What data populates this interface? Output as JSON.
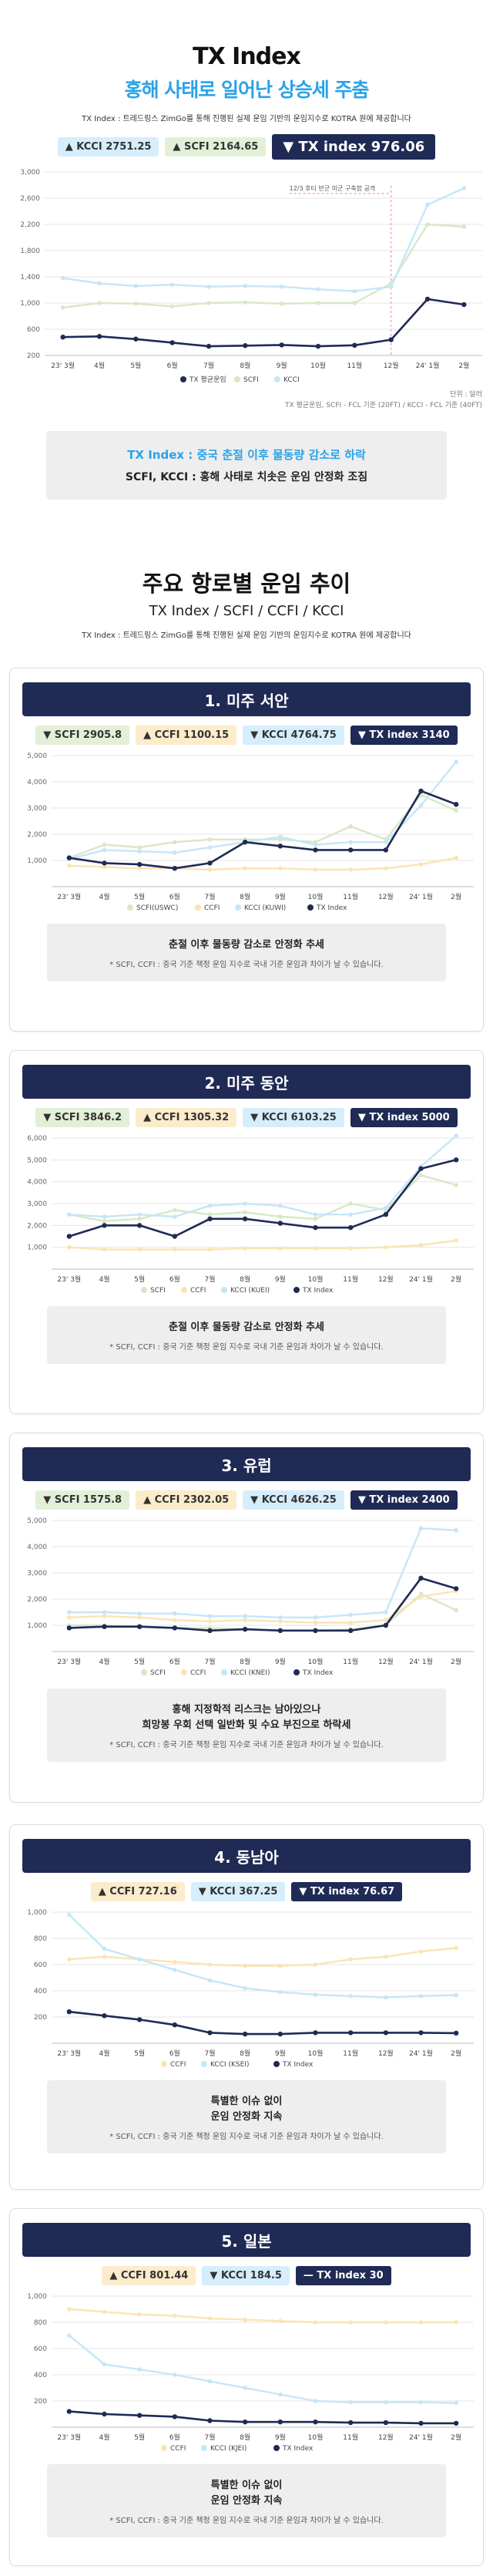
{
  "header": {
    "title": "TX Index",
    "subtitle": "홍해 사태로 일어난 상승세 주춤",
    "description": "TX Index : 트레드링스 ZimGo를 통해 진행된 실제 운임 기반의 운임지수로 KOTRA 원에 제공합니다"
  },
  "top_badges": {
    "kcci": "KCCI 2751.25",
    "scfi": "SCFI 2164.65",
    "tx": "TX index 976.06"
  },
  "top_note": {
    "unit": "단위 : 달러",
    "source": "TX 평균운임, SCFI - FCL 기준 (20FT) / KCCI - FCL 기준 (40FT)"
  },
  "summary_box": {
    "line1": "TX Index : 중국 춘절 이후 물동량 감소로 하락",
    "line2": "SCFI, KCCI : 홍해 사태로 치솟은 운임 안정화 조짐"
  },
  "section": {
    "title": "주요 항로별 운임 추이",
    "subtitle": "TX Index / SCFI / CCFI / KCCI",
    "description": "TX Index : 트레드링스 ZimGo를 통해 진행된 실제 운임 기반의 운임지수로 KOTRA 원에 제공합니다"
  },
  "colors": {
    "tx": "#1f2a55",
    "scfi": "#d7e8c6",
    "ccfi": "#fbe4b3",
    "kcci": "#c6e6f8",
    "accent": "#2aa3e8",
    "annotation": "#e88aa0"
  },
  "months": [
    "23' 3월",
    "4월",
    "5월",
    "6월",
    "7월",
    "8월",
    "9월",
    "10월",
    "11월",
    "12월",
    "24' 1월",
    "2월"
  ],
  "cards": [
    {
      "title": "1. 미주 서안",
      "badges": [
        {
          "key": "scfi",
          "text": "SCFI 2905.8"
        },
        {
          "key": "ccfi",
          "text": "CCFI 1100.15"
        },
        {
          "key": "kcci",
          "text": "KCCI 4764.75"
        },
        {
          "key": "tx",
          "text": "TX index 3140"
        }
      ],
      "note_lines": [
        "춘절 이후 물동량 감소로 안정화 추세"
      ],
      "footnote": "* SCFI, CCFI : 중국 기준 책정 운임 지수로 국내 기준 운임과 차이가 날 수 있습니다."
    },
    {
      "title": "2. 미주 동안",
      "badges": [
        {
          "key": "scfi",
          "text": "SCFI 3846.2"
        },
        {
          "key": "ccfi",
          "text": "CCFI 1305.32"
        },
        {
          "key": "kcci",
          "text": "KCCI 6103.25"
        },
        {
          "key": "tx",
          "text": "TX index 5000"
        }
      ],
      "note_lines": [
        "춘절 이후 물동량 감소로 안정화 추세"
      ],
      "footnote": "* SCFI, CCFI : 중국 기준 책정 운임 지수로 국내 기준 운임과 차이가 날 수 있습니다."
    },
    {
      "title": "3. 유럽",
      "badges": [
        {
          "key": "scfi",
          "text": "SCFI 1575.8"
        },
        {
          "key": "ccfi",
          "text": "CCFI 2302.05"
        },
        {
          "key": "kcci",
          "text": "KCCI 4626.25"
        },
        {
          "key": "tx",
          "text": "TX index 2400"
        }
      ],
      "note_lines": [
        "홍해 지정학적 리스크는 남아있으나",
        "희망봉 우회 선택 일반화 및 수요 부진으로 하락세"
      ],
      "footnote": "* SCFI, CCFI : 중국 기준 책정 운임 지수로 국내 기준 운임과 차이가 날 수 있습니다."
    },
    {
      "title": "4. 동남아",
      "badges": [
        {
          "key": "ccfi",
          "text": "CCFI 727.16"
        },
        {
          "key": "kcci",
          "text": "KCCI 367.25"
        },
        {
          "key": "tx",
          "text": "TX index 76.67"
        }
      ],
      "note_lines": [
        "특별한 이슈 없이",
        "운임 안정화 지속"
      ],
      "footnote": "* SCFI, CCFI : 중국 기준 책정 운임 지수로 국내 기준 운임과 차이가 날 수 있습니다."
    },
    {
      "title": "5. 일본",
      "badges": [
        {
          "key": "ccfi",
          "text": "CCFI 801.44"
        },
        {
          "key": "kcci",
          "text": "KCCI 184.5"
        },
        {
          "key": "tx",
          "text": "TX index 30"
        }
      ],
      "note_lines": [
        "특별한 이슈 없이",
        "운임 안정화 지속"
      ],
      "footnote": "* SCFI, CCFI : 중국 기준 책정 운임 지수로 국내 기준 운임과 차이가 날 수 있습니다."
    }
  ],
  "chart_data": [
    {
      "type": "line",
      "title": "TX Index",
      "x": [
        "23' 3월",
        "4월",
        "5월",
        "6월",
        "7월",
        "8월",
        "9월",
        "10월",
        "11월",
        "12월",
        "24' 1월",
        "2월"
      ],
      "yticks": [
        200,
        600,
        1000,
        1400,
        1800,
        2200,
        2600,
        3000
      ],
      "ylim": [
        200,
        3000
      ],
      "annotation": "12/3 후티 반군 미군 구축함 공격",
      "legend_position": "bottom",
      "series": [
        {
          "name": "TX 평균운임",
          "key": "tx",
          "values": [
            480,
            490,
            450,
            395,
            340,
            350,
            360,
            340,
            355,
            440,
            1060,
            976
          ]
        },
        {
          "name": "SCFI",
          "key": "scfi",
          "values": [
            930,
            1000,
            990,
            950,
            1000,
            1010,
            990,
            1000,
            1000,
            1300,
            2200,
            2165
          ]
        },
        {
          "name": "KCCI",
          "key": "kcci",
          "values": [
            1380,
            1300,
            1260,
            1280,
            1250,
            1260,
            1250,
            1210,
            1180,
            1250,
            2500,
            2751
          ]
        }
      ]
    },
    {
      "type": "line",
      "title": "1. 미주 서안",
      "x": [
        "23' 3월",
        "4월",
        "5월",
        "6월",
        "7월",
        "8월",
        "9월",
        "10월",
        "11월",
        "12월",
        "24' 1월",
        "2월"
      ],
      "yticks": [
        1000,
        2000,
        3000,
        4000,
        5000
      ],
      "ylim": [
        0,
        5000
      ],
      "legend_position": "bottom",
      "series": [
        {
          "name": "SCFI(USWC)",
          "key": "scfi",
          "values": [
            1100,
            1600,
            1500,
            1700,
            1800,
            1800,
            1800,
            1700,
            2300,
            1800,
            3500,
            2906
          ]
        },
        {
          "name": "CCFI",
          "key": "ccfi",
          "values": [
            800,
            750,
            700,
            700,
            650,
            700,
            700,
            650,
            650,
            700,
            850,
            1100
          ]
        },
        {
          "name": "KCCI (KUWI)",
          "key": "kcci",
          "values": [
            1050,
            1400,
            1350,
            1300,
            1500,
            1700,
            1900,
            1600,
            1700,
            1700,
            3100,
            4765
          ]
        },
        {
          "name": "TX Index",
          "key": "tx",
          "values": [
            1100,
            900,
            850,
            700,
            900,
            1700,
            1550,
            1400,
            1400,
            1400,
            3650,
            3140
          ]
        }
      ]
    },
    {
      "type": "line",
      "title": "2. 미주 동안",
      "x": [
        "23' 3월",
        "4월",
        "5월",
        "6월",
        "7월",
        "8월",
        "9월",
        "10월",
        "11월",
        "12월",
        "24' 1월",
        "2월"
      ],
      "yticks": [
        1000,
        2000,
        3000,
        4000,
        5000,
        6000
      ],
      "ylim": [
        0,
        6000
      ],
      "legend_position": "bottom",
      "series": [
        {
          "name": "SCFI",
          "key": "scfi",
          "values": [
            2500,
            2200,
            2300,
            2700,
            2500,
            2600,
            2400,
            2300,
            3000,
            2700,
            4300,
            3846
          ]
        },
        {
          "name": "CCFI",
          "key": "ccfi",
          "values": [
            1000,
            900,
            900,
            900,
            900,
            950,
            950,
            950,
            950,
            1000,
            1100,
            1305
          ]
        },
        {
          "name": "KCCI (KUEI)",
          "key": "kcci",
          "values": [
            2500,
            2400,
            2500,
            2400,
            2900,
            3000,
            2900,
            2500,
            2500,
            2800,
            4700,
            6103
          ]
        },
        {
          "name": "TX Index",
          "key": "tx",
          "values": [
            1500,
            2000,
            2000,
            1500,
            2300,
            2300,
            2100,
            1900,
            1900,
            2500,
            4600,
            5000
          ]
        }
      ]
    },
    {
      "type": "line",
      "title": "3. 유럽",
      "x": [
        "23' 3월",
        "4월",
        "5월",
        "6월",
        "7월",
        "8월",
        "9월",
        "10월",
        "11월",
        "12월",
        "24' 1월",
        "2월"
      ],
      "yticks": [
        1000,
        2000,
        3000,
        4000,
        5000
      ],
      "ylim": [
        0,
        5000
      ],
      "legend_position": "bottom",
      "series": [
        {
          "name": "SCFI",
          "key": "scfi",
          "values": [
            1000,
            1000,
            950,
            900,
            900,
            850,
            800,
            800,
            850,
            1000,
            2200,
            1576
          ]
        },
        {
          "name": "CCFI",
          "key": "ccfi",
          "values": [
            1300,
            1350,
            1300,
            1200,
            1150,
            1200,
            1150,
            1100,
            1100,
            1200,
            2100,
            2302
          ]
        },
        {
          "name": "KCCI (KNEI)",
          "key": "kcci",
          "values": [
            1500,
            1500,
            1450,
            1450,
            1350,
            1350,
            1300,
            1300,
            1400,
            1500,
            4700,
            4626
          ]
        },
        {
          "name": "TX Index",
          "key": "tx",
          "values": [
            900,
            950,
            950,
            900,
            800,
            850,
            800,
            800,
            800,
            1000,
            2800,
            2400
          ]
        }
      ]
    },
    {
      "type": "line",
      "title": "4. 동남아",
      "x": [
        "23' 3월",
        "4월",
        "5월",
        "6월",
        "7월",
        "8월",
        "9월",
        "10월",
        "11월",
        "12월",
        "24' 1월",
        "2월"
      ],
      "yticks": [
        200,
        400,
        600,
        800,
        1000
      ],
      "ylim": [
        0,
        1000
      ],
      "legend_position": "bottom",
      "series": [
        {
          "name": "CCFI",
          "key": "ccfi",
          "values": [
            640,
            660,
            640,
            620,
            600,
            590,
            590,
            600,
            640,
            660,
            700,
            727
          ]
        },
        {
          "name": "KCCI (KSEI)",
          "key": "kcci",
          "values": [
            980,
            720,
            640,
            560,
            480,
            420,
            390,
            370,
            360,
            350,
            360,
            367
          ]
        },
        {
          "name": "TX Index",
          "key": "tx",
          "values": [
            240,
            210,
            180,
            140,
            80,
            70,
            70,
            80,
            80,
            80,
            80,
            77
          ]
        }
      ]
    },
    {
      "type": "line",
      "title": "5. 일본",
      "x": [
        "23' 3월",
        "4월",
        "5월",
        "6월",
        "7월",
        "8월",
        "9월",
        "10월",
        "11월",
        "12월",
        "24' 1월",
        "2월"
      ],
      "yticks": [
        200,
        400,
        600,
        800,
        1000
      ],
      "ylim": [
        0,
        1000
      ],
      "legend_position": "bottom",
      "series": [
        {
          "name": "CCFI",
          "key": "ccfi",
          "values": [
            900,
            880,
            860,
            850,
            830,
            820,
            810,
            800,
            800,
            800,
            800,
            801
          ]
        },
        {
          "name": "KCCI (KJEI)",
          "key": "kcci",
          "values": [
            700,
            480,
            440,
            400,
            350,
            300,
            250,
            200,
            190,
            190,
            190,
            185
          ]
        },
        {
          "name": "TX Index",
          "key": "tx",
          "values": [
            120,
            100,
            90,
            80,
            50,
            40,
            40,
            40,
            35,
            35,
            30,
            30
          ]
        }
      ]
    }
  ]
}
